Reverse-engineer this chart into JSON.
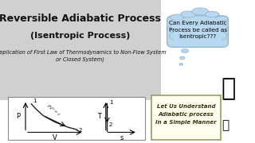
{
  "bg_color": "#f0f0f0",
  "title_bg_color": "#d0d0d0",
  "title1": "Reversible Adiabatic Process",
  "title2": "(Isentropic Process)",
  "subtitle": "(Application of First Law of Thermodynamics to Non-Flow System\nor Closed System)",
  "thought_text": "Can Every Adiabatic\nProcess be called as\nIsentropic???",
  "sign_text": "Let Us Understand\nAdiabatic process\nIn a Simple Manner",
  "pv_curve_x": [
    0.1,
    0.18,
    0.3,
    0.5,
    0.72,
    0.88
  ],
  "pv_curve_y": [
    0.88,
    0.72,
    0.52,
    0.32,
    0.16,
    0.08
  ],
  "title1_fontsize": 9,
  "title2_fontsize": 8,
  "subtitle_fontsize": 4.8,
  "text_color": "#111111",
  "curve_color": "#222222",
  "white": "#ffffff",
  "thought_color": "#b8d8ef",
  "thought_edge": "#8ab0c8",
  "sign_bg": "#fffff0",
  "sign_edge": "#999966",
  "sign_text_color": "#333311"
}
